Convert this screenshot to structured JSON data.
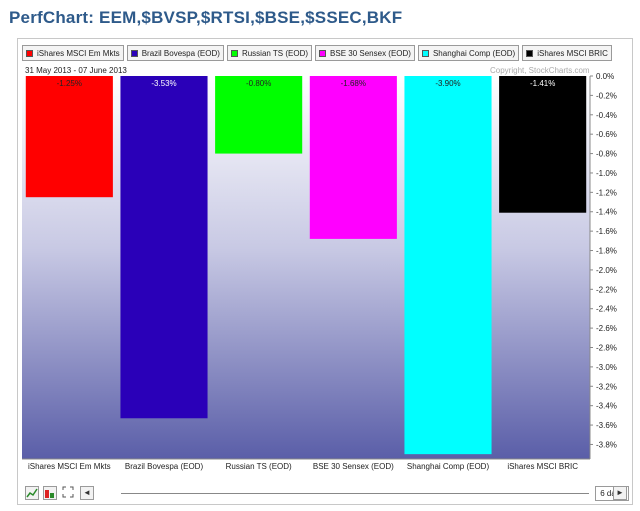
{
  "page": {
    "title": "PerfChart: EEM,$BVSP,$RTSI,$BSE,$SSEC,BKF"
  },
  "header": {
    "date_range": "31 May 2013 - 07 June 2013",
    "copyright": "Copyright, StockCharts.com"
  },
  "controls": {
    "prev_glyph": "◄",
    "next_glyph": "►",
    "period_label": "6 days"
  },
  "colors": {
    "title": "#2e5a8a",
    "bg_top": "#ffffff",
    "bg_bottom": "#5a5ea8"
  },
  "chart_data": {
    "type": "bar",
    "categories": [
      "iShares MSCI Em Mkts",
      "Brazil Bovespa (EOD)",
      "Russian TS (EOD)",
      "BSE 30 Sensex (EOD)",
      "Shanghai Comp (EOD)",
      "iShares MSCI BRIC"
    ],
    "legend": [
      {
        "label": "iShares MSCI Em Mkts",
        "color": "#ff0000"
      },
      {
        "label": "Brazil Bovespa (EOD)",
        "color": "#2a00b8"
      },
      {
        "label": "Russian TS (EOD)",
        "color": "#00ff00"
      },
      {
        "label": "BSE 30 Sensex (EOD)",
        "color": "#ff00ff"
      },
      {
        "label": "Shanghai Comp (EOD)",
        "color": "#00ffff"
      },
      {
        "label": "iShares MSCI BRIC",
        "color": "#000000"
      }
    ],
    "values": [
      -1.25,
      -3.53,
      -0.8,
      -1.68,
      -3.9,
      -1.41
    ],
    "data_labels": [
      "-1.25%",
      "-3.53%",
      "-0.80%",
      "-1.68%",
      "-3.90%",
      "-1.41%"
    ],
    "colors": [
      "#ff0000",
      "#2a00b8",
      "#00ff00",
      "#ff00ff",
      "#00ffff",
      "#000000"
    ],
    "label_colors": [
      "#222222",
      "#ffffff",
      "#222222",
      "#222222",
      "#222222",
      "#ffffff"
    ],
    "y_ticks": [
      "0.0%",
      "-0.2%",
      "-0.4%",
      "-0.6%",
      "-0.8%",
      "-1.0%",
      "-1.2%",
      "-1.4%",
      "-1.6%",
      "-1.8%",
      "-2.0%",
      "-2.2%",
      "-2.4%",
      "-2.6%",
      "-2.8%",
      "-3.0%",
      "-3.2%",
      "-3.4%",
      "-3.6%",
      "-3.8%"
    ],
    "y_tick_values": [
      0,
      -0.2,
      -0.4,
      -0.6,
      -0.8,
      -1.0,
      -1.2,
      -1.4,
      -1.6,
      -1.8,
      -2.0,
      -2.2,
      -2.4,
      -2.6,
      -2.8,
      -3.0,
      -3.2,
      -3.4,
      -3.6,
      -3.8
    ],
    "ylim": [
      -3.95,
      0
    ],
    "y_axis_position": "right",
    "grid": false
  }
}
